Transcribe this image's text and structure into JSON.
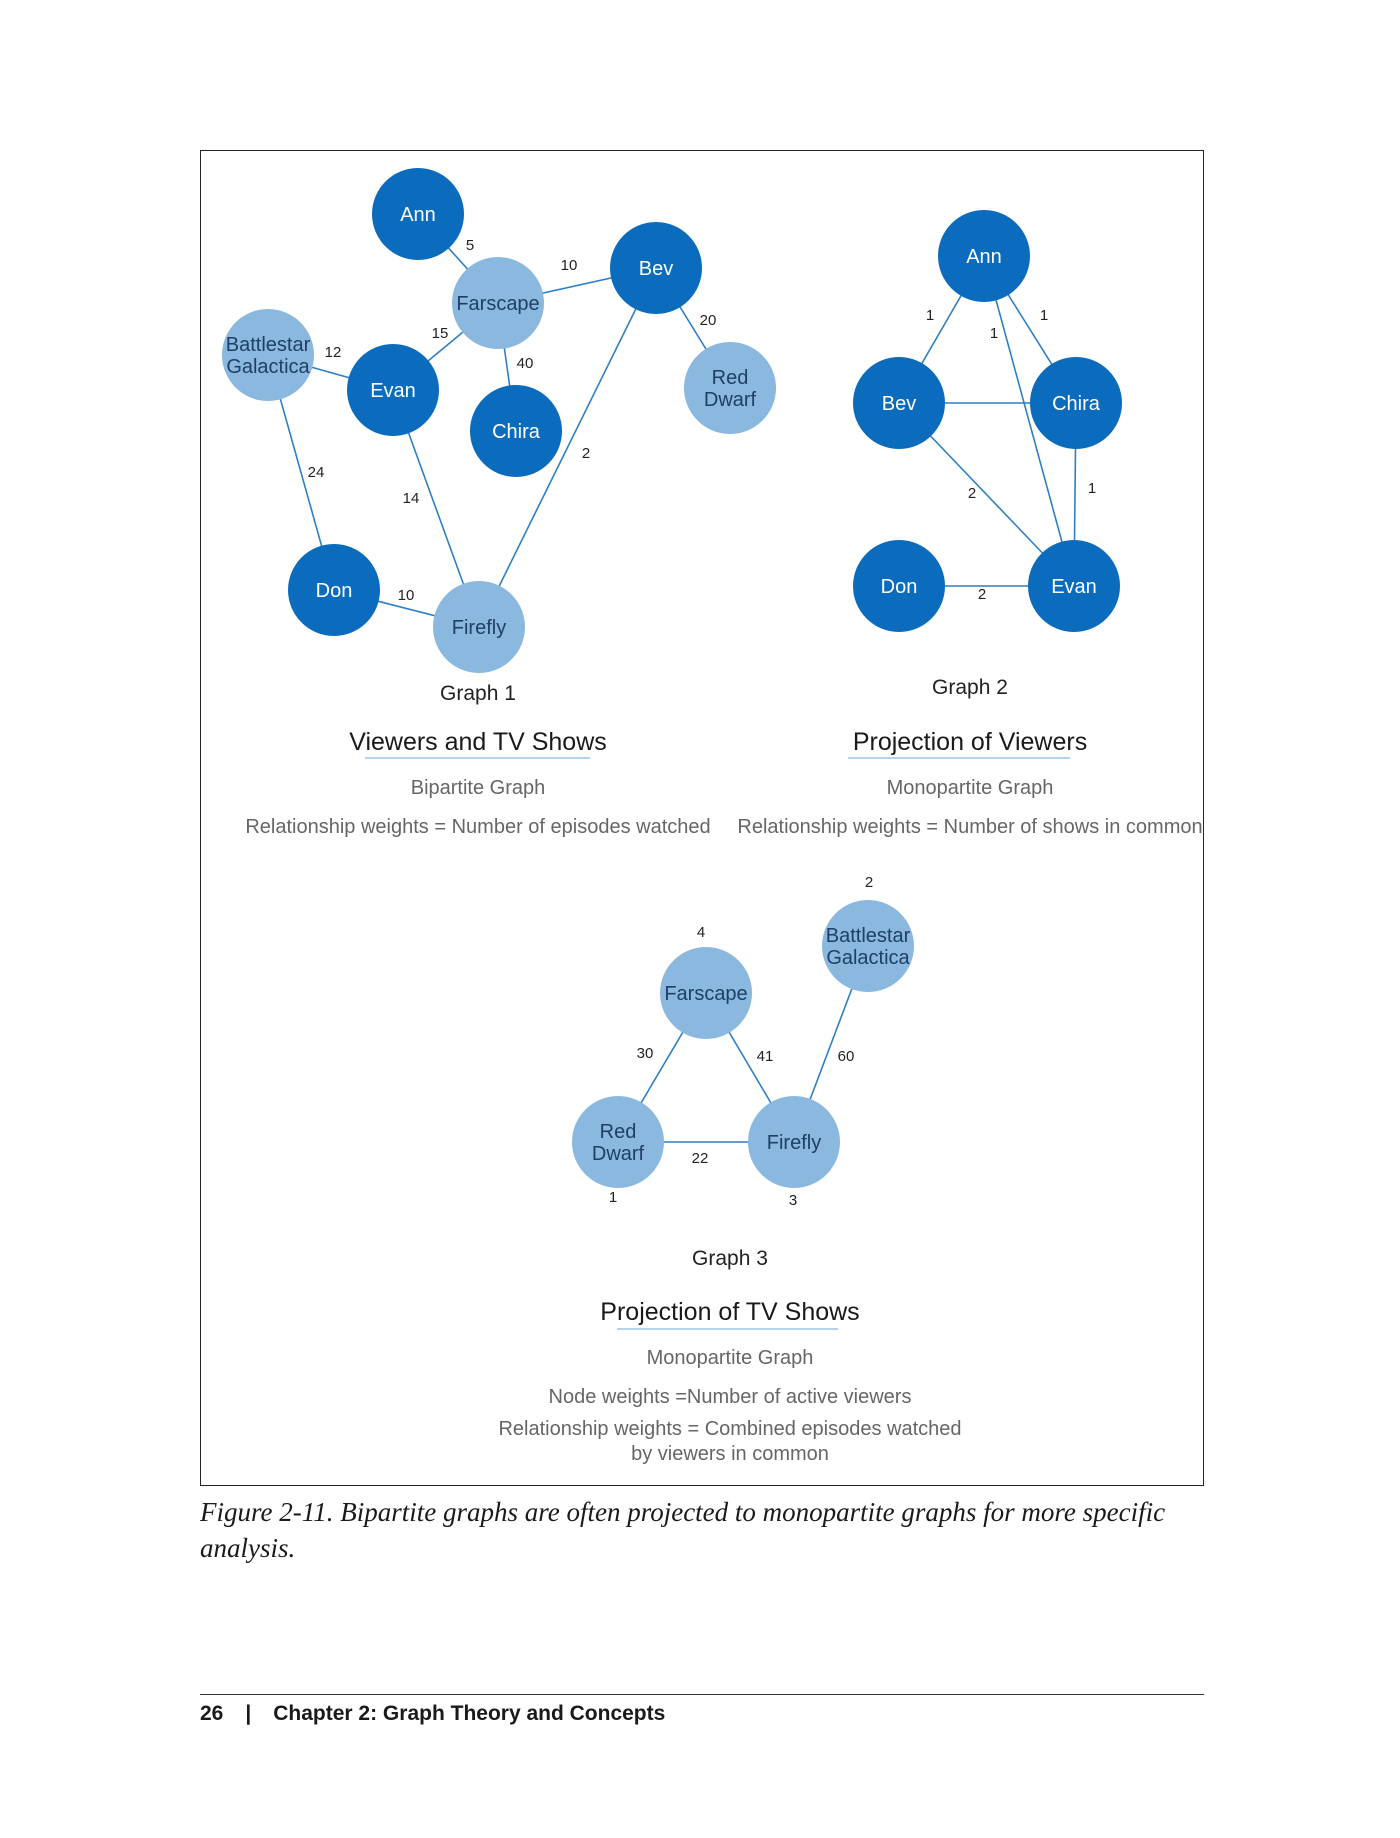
{
  "colors": {
    "viewer_node": "#0b6bbd",
    "show_node": "#8ab8de",
    "edge": "#2f7fc4",
    "title_underline": "#9cc6e8",
    "text_gray": "#666666"
  },
  "graph1": {
    "label": "Graph 1",
    "title": "Viewers and TV Shows",
    "subtitle": "Bipartite Graph",
    "description": "Relationship weights = Number of episodes watched",
    "nodes": [
      {
        "id": "ann",
        "lines": [
          "Ann"
        ],
        "kind": "viewer"
      },
      {
        "id": "farscape",
        "lines": [
          "Farscape"
        ],
        "kind": "show"
      },
      {
        "id": "bev",
        "lines": [
          "Bev"
        ],
        "kind": "viewer"
      },
      {
        "id": "battlestar",
        "lines": [
          "Battlestar",
          "Galactica"
        ],
        "kind": "show"
      },
      {
        "id": "evan",
        "lines": [
          "Evan"
        ],
        "kind": "viewer"
      },
      {
        "id": "chira",
        "lines": [
          "Chira"
        ],
        "kind": "viewer"
      },
      {
        "id": "reddwarf",
        "lines": [
          "Red",
          "Dwarf"
        ],
        "kind": "show"
      },
      {
        "id": "don",
        "lines": [
          "Don"
        ],
        "kind": "viewer"
      },
      {
        "id": "firefly",
        "lines": [
          "Firefly"
        ],
        "kind": "show"
      }
    ],
    "edges": [
      {
        "from": "ann",
        "to": "farscape",
        "weight": "5"
      },
      {
        "from": "farscape",
        "to": "bev",
        "weight": "10"
      },
      {
        "from": "bev",
        "to": "reddwarf",
        "weight": "20"
      },
      {
        "from": "farscape",
        "to": "evan",
        "weight": "15"
      },
      {
        "from": "farscape",
        "to": "chira",
        "weight": "40"
      },
      {
        "from": "battlestar",
        "to": "evan",
        "weight": "12"
      },
      {
        "from": "battlestar",
        "to": "don",
        "weight": "24"
      },
      {
        "from": "evan",
        "to": "firefly",
        "weight": "14"
      },
      {
        "from": "bev",
        "to": "firefly",
        "weight": "2"
      },
      {
        "from": "don",
        "to": "firefly",
        "weight": "10"
      }
    ]
  },
  "graph2": {
    "label": "Graph 2",
    "title": "Projection of Viewers",
    "subtitle": "Monopartite Graph",
    "description": "Relationship weights = Number of shows in common",
    "nodes": [
      {
        "id": "ann",
        "lines": [
          "Ann"
        ],
        "kind": "viewer"
      },
      {
        "id": "bev",
        "lines": [
          "Bev"
        ],
        "kind": "viewer"
      },
      {
        "id": "chira",
        "lines": [
          "Chira"
        ],
        "kind": "viewer"
      },
      {
        "id": "don",
        "lines": [
          "Don"
        ],
        "kind": "viewer"
      },
      {
        "id": "evan",
        "lines": [
          "Evan"
        ],
        "kind": "viewer"
      }
    ],
    "edges": [
      {
        "from": "ann",
        "to": "bev",
        "weight": "1"
      },
      {
        "from": "ann",
        "to": "chira",
        "weight": "1"
      },
      {
        "from": "ann",
        "to": "evan",
        "weight": "1"
      },
      {
        "from": "bev",
        "to": "chira",
        "weight": ""
      },
      {
        "from": "bev",
        "to": "evan",
        "weight": "2"
      },
      {
        "from": "chira",
        "to": "evan",
        "weight": "1"
      },
      {
        "from": "don",
        "to": "evan",
        "weight": "2"
      }
    ]
  },
  "graph3": {
    "label": "Graph 3",
    "title": "Projection of TV Shows",
    "subtitle": "Monopartite Graph",
    "node_weights_text": "Node weights =Number of active viewers",
    "description_lines": [
      "Relationship weights = Combined episodes watched",
      "by viewers in common"
    ],
    "nodes": [
      {
        "id": "farscape",
        "lines": [
          "Farscape"
        ],
        "kind": "show",
        "weight": "4"
      },
      {
        "id": "battlestar",
        "lines": [
          "Battlestar",
          "Galactica"
        ],
        "kind": "show",
        "weight": "2"
      },
      {
        "id": "reddwarf",
        "lines": [
          "Red",
          "Dwarf"
        ],
        "kind": "show",
        "weight": "1"
      },
      {
        "id": "firefly",
        "lines": [
          "Firefly"
        ],
        "kind": "show",
        "weight": "3"
      }
    ],
    "edges": [
      {
        "from": "farscape",
        "to": "reddwarf",
        "weight": "30"
      },
      {
        "from": "farscape",
        "to": "firefly",
        "weight": "41"
      },
      {
        "from": "battlestar",
        "to": "firefly",
        "weight": "60"
      },
      {
        "from": "reddwarf",
        "to": "firefly",
        "weight": "22"
      }
    ]
  },
  "caption": "Figure 2-11. Bipartite graphs are often projected to monopartite graphs for more specific analysis.",
  "footer": {
    "page_number": "26",
    "separator": "|",
    "chapter": "Chapter 2: Graph Theory and Concepts"
  }
}
